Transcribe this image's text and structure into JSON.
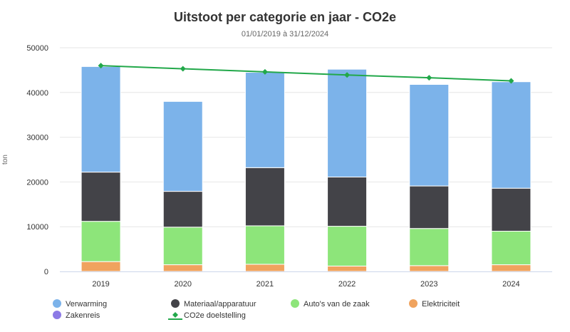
{
  "chart_data": {
    "type": "bar",
    "stacked": true,
    "title": "Uitstoot per categorie en jaar - CO2e",
    "subtitle": "01/01/2019 à 31/12/2024",
    "ylabel": "ton",
    "ylim": [
      0,
      50000
    ],
    "yticks": [
      0,
      10000,
      20000,
      30000,
      40000,
      50000
    ],
    "grid": true,
    "categories": [
      "2019",
      "2020",
      "2021",
      "2022",
      "2023",
      "2024"
    ],
    "series": [
      {
        "name": "Zakenreis",
        "color": "#8c7ae6",
        "values": [
          0,
          0,
          0,
          0,
          0,
          0
        ]
      },
      {
        "name": "Elektriciteit",
        "color": "#f0a35e",
        "values": [
          2200,
          1500,
          1600,
          1200,
          1300,
          1500
        ]
      },
      {
        "name": "Auto's van de zaak",
        "color": "#8de57a",
        "values": [
          9000,
          8400,
          8600,
          8900,
          8300,
          7500
        ]
      },
      {
        "name": "Materiaal/apparatuur",
        "color": "#434348",
        "values": [
          11000,
          8000,
          13000,
          11000,
          9500,
          9600
        ]
      },
      {
        "name": "Verwarming",
        "color": "#7cb3ea",
        "values": [
          23600,
          20100,
          21300,
          24100,
          22700,
          23800
        ]
      }
    ],
    "line_series": {
      "name": "CO2e doelstelling",
      "color": "#22a84a",
      "values": [
        46000,
        45300,
        44600,
        43900,
        43300,
        42600
      ]
    },
    "legend": {
      "placement": "bottom",
      "items": [
        {
          "name": "Verwarming",
          "color": "#7cb3ea",
          "marker": "circle"
        },
        {
          "name": "Materiaal/apparatuur",
          "color": "#434348",
          "marker": "circle"
        },
        {
          "name": "Auto's van de zaak",
          "color": "#8de57a",
          "marker": "circle"
        },
        {
          "name": "Elektriciteit",
          "color": "#f0a35e",
          "marker": "circle"
        },
        {
          "name": "Zakenreis",
          "color": "#8c7ae6",
          "marker": "circle"
        },
        {
          "name": "CO2e doelstelling",
          "color": "#22a84a",
          "marker": "line-diamond"
        }
      ]
    }
  }
}
